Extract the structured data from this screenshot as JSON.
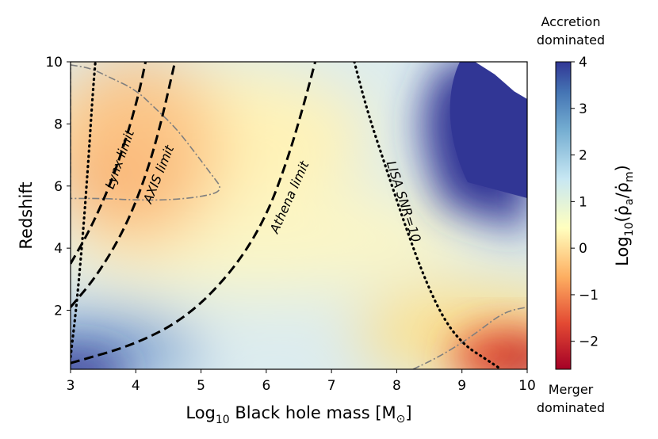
{
  "chart_data": {
    "type": "heatmap",
    "title": "",
    "xlabel": "Log",
    "xlabel_sub": "10",
    "xlabel_rest": " Black hole mass [M",
    "xlabel_sun": "⊙",
    "xlabel_end": "]",
    "ylabel": "Redshift",
    "xlim": [
      3,
      10
    ],
    "ylim": [
      0.1,
      10
    ],
    "x_ticks": [
      3,
      4,
      5,
      6,
      7,
      8,
      9,
      10
    ],
    "y_ticks": [
      2,
      4,
      6,
      8,
      10
    ],
    "colorbar": {
      "label_prefix": "Log",
      "label_sub": "10",
      "label_rest": "(ρ̇",
      "label_a": "a",
      "label_mid": "/ρ̇",
      "label_m": "m",
      "label_end": ")",
      "range": [
        -2.6,
        4
      ],
      "ticks": [
        -2,
        -1,
        0,
        1,
        2,
        3,
        4
      ],
      "tick_labels": [
        "−2",
        "−1",
        "0",
        "1",
        "2",
        "3",
        "4"
      ],
      "top_note": [
        "Accretion",
        "dominated"
      ],
      "bottom_note": [
        "Merger",
        "dominated"
      ]
    },
    "curves": [
      {
        "name": "Lynx limit",
        "style": "dashed",
        "points": [
          [
            3.0,
            3.5
          ],
          [
            3.3,
            4.6
          ],
          [
            3.6,
            6.0
          ],
          [
            3.85,
            7.5
          ],
          [
            4.05,
            9.0
          ],
          [
            4.15,
            10.0
          ]
        ]
      },
      {
        "name": "AXIS limit",
        "style": "dashed",
        "points": [
          [
            3.0,
            2.1
          ],
          [
            3.4,
            3.1
          ],
          [
            3.8,
            4.5
          ],
          [
            4.1,
            6.0
          ],
          [
            4.35,
            7.7
          ],
          [
            4.6,
            10.0
          ]
        ]
      },
      {
        "name": "Athena limit",
        "style": "dashed",
        "points": [
          [
            3.0,
            0.3
          ],
          [
            4.0,
            0.9
          ],
          [
            4.8,
            1.8
          ],
          [
            5.5,
            3.3
          ],
          [
            6.0,
            5.0
          ],
          [
            6.35,
            7.0
          ],
          [
            6.6,
            8.8
          ],
          [
            6.75,
            10.0
          ]
        ]
      },
      {
        "name": "LISA SNR=10",
        "style": "dotted",
        "points": [
          [
            7.35,
            10.0
          ],
          [
            7.55,
            8.4
          ],
          [
            7.85,
            6.5
          ],
          [
            8.15,
            4.6
          ],
          [
            8.45,
            2.9
          ],
          [
            8.75,
            1.6
          ],
          [
            9.05,
            0.85
          ],
          [
            9.35,
            0.45
          ],
          [
            9.6,
            0.1
          ]
        ]
      },
      {
        "name": "",
        "style": "dotted",
        "points": [
          [
            3.0,
            0.5
          ],
          [
            3.1,
            2.3
          ],
          [
            3.2,
            4.7
          ],
          [
            3.28,
            7.0
          ],
          [
            3.33,
            8.7
          ],
          [
            3.38,
            10.0
          ]
        ]
      }
    ],
    "contours": [
      {
        "style": "dashdot",
        "closed": true,
        "points": [
          [
            3.0,
            9.9
          ],
          [
            3.3,
            9.8
          ],
          [
            3.6,
            9.5
          ],
          [
            4.0,
            9.1
          ],
          [
            4.3,
            8.5
          ],
          [
            4.6,
            7.9
          ],
          [
            4.9,
            7.1
          ],
          [
            5.15,
            6.4
          ],
          [
            5.35,
            5.85
          ],
          [
            5.0,
            5.65
          ],
          [
            4.5,
            5.55
          ],
          [
            4.0,
            5.55
          ],
          [
            3.5,
            5.6
          ],
          [
            3.0,
            5.6
          ]
        ]
      },
      {
        "style": "dashdot",
        "closed": false,
        "points": [
          [
            8.25,
            0.1
          ],
          [
            8.6,
            0.45
          ],
          [
            9.0,
            0.95
          ],
          [
            9.3,
            1.4
          ],
          [
            9.55,
            1.8
          ],
          [
            9.75,
            2.0
          ],
          [
            10.0,
            2.1
          ]
        ]
      }
    ],
    "blank_region": [
      [
        9.2,
        10.0
      ],
      [
        9.5,
        9.6
      ],
      [
        9.8,
        9.05
      ],
      [
        10.0,
        8.8
      ],
      [
        10.0,
        10.0
      ]
    ],
    "field_description": [
      {
        "region": "upper-left",
        "value_range": [
          -1,
          0
        ]
      },
      {
        "region": "upper-right",
        "value_range": [
          4,
          4
        ]
      },
      {
        "region": "lower-left",
        "value_range": [
          3,
          4
        ]
      },
      {
        "region": "lower-right",
        "value_range": [
          -2.5,
          -1
        ]
      },
      {
        "region": "center",
        "value_range": [
          1,
          2
        ]
      }
    ]
  }
}
